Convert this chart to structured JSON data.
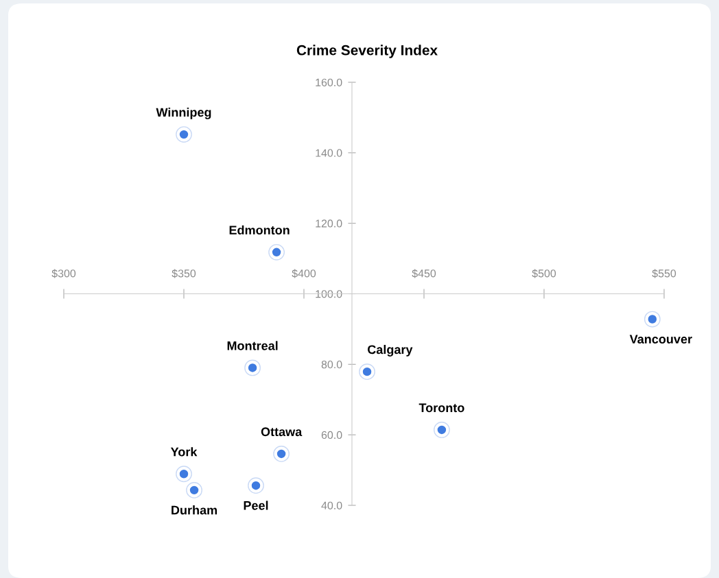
{
  "chart_data": {
    "type": "scatter",
    "title": "Crime Severity Index",
    "x": [
      350,
      388.6,
      378.6,
      426.3,
      457.4,
      545.1,
      390.6,
      350,
      354.3,
      380
    ],
    "series": [
      {
        "color": "#3f7be0",
        "values": [
          145.2,
          111.8,
          79,
          77.9,
          61.4,
          92.8,
          54.6,
          48.9,
          44.3,
          45.6
        ]
      }
    ],
    "annotations": [
      {
        "text": "Winnipeg",
        "x": 350,
        "y": 145.2
      },
      {
        "text": "Edmonton",
        "x": 388.6,
        "y": 111.8
      },
      {
        "text": "Montreal",
        "x": 378.6,
        "y": 79
      },
      {
        "text": "Calgary",
        "x": 426.3,
        "y": 77.9
      },
      {
        "text": "Toronto",
        "x": 457.4,
        "y": 61.4
      },
      {
        "text": "Vancouver",
        "x": 545.1,
        "y": 92.8
      },
      {
        "text": "Ottawa",
        "x": 390.6,
        "y": 54.6
      },
      {
        "text": "York",
        "x": 350,
        "y": 48.9
      },
      {
        "text": "Durham",
        "x": 354.3,
        "y": 44.3
      },
      {
        "text": "Peel",
        "x": 380,
        "y": 45.6
      }
    ],
    "xlim": [
      300,
      550
    ],
    "xticks": [
      {
        "value": 300,
        "label": "$300"
      },
      {
        "value": 350,
        "label": "$350"
      },
      {
        "value": 400,
        "label": "$400"
      },
      {
        "value": 450,
        "label": "$450"
      },
      {
        "value": 500,
        "label": "$500"
      },
      {
        "value": 550,
        "label": "$550"
      }
    ],
    "ylim": [
      40,
      160
    ],
    "yticks": [
      {
        "value": 40,
        "label": "40.0"
      },
      {
        "value": 60,
        "label": "60.0"
      },
      {
        "value": 80,
        "label": "80.0"
      },
      {
        "value": 100,
        "label": "100.0"
      },
      {
        "value": 120,
        "label": "120.0"
      },
      {
        "value": 140,
        "label": "140.0"
      },
      {
        "value": 160,
        "label": "160.0"
      }
    ],
    "marker": "circle",
    "grid": false,
    "legend": false
  }
}
